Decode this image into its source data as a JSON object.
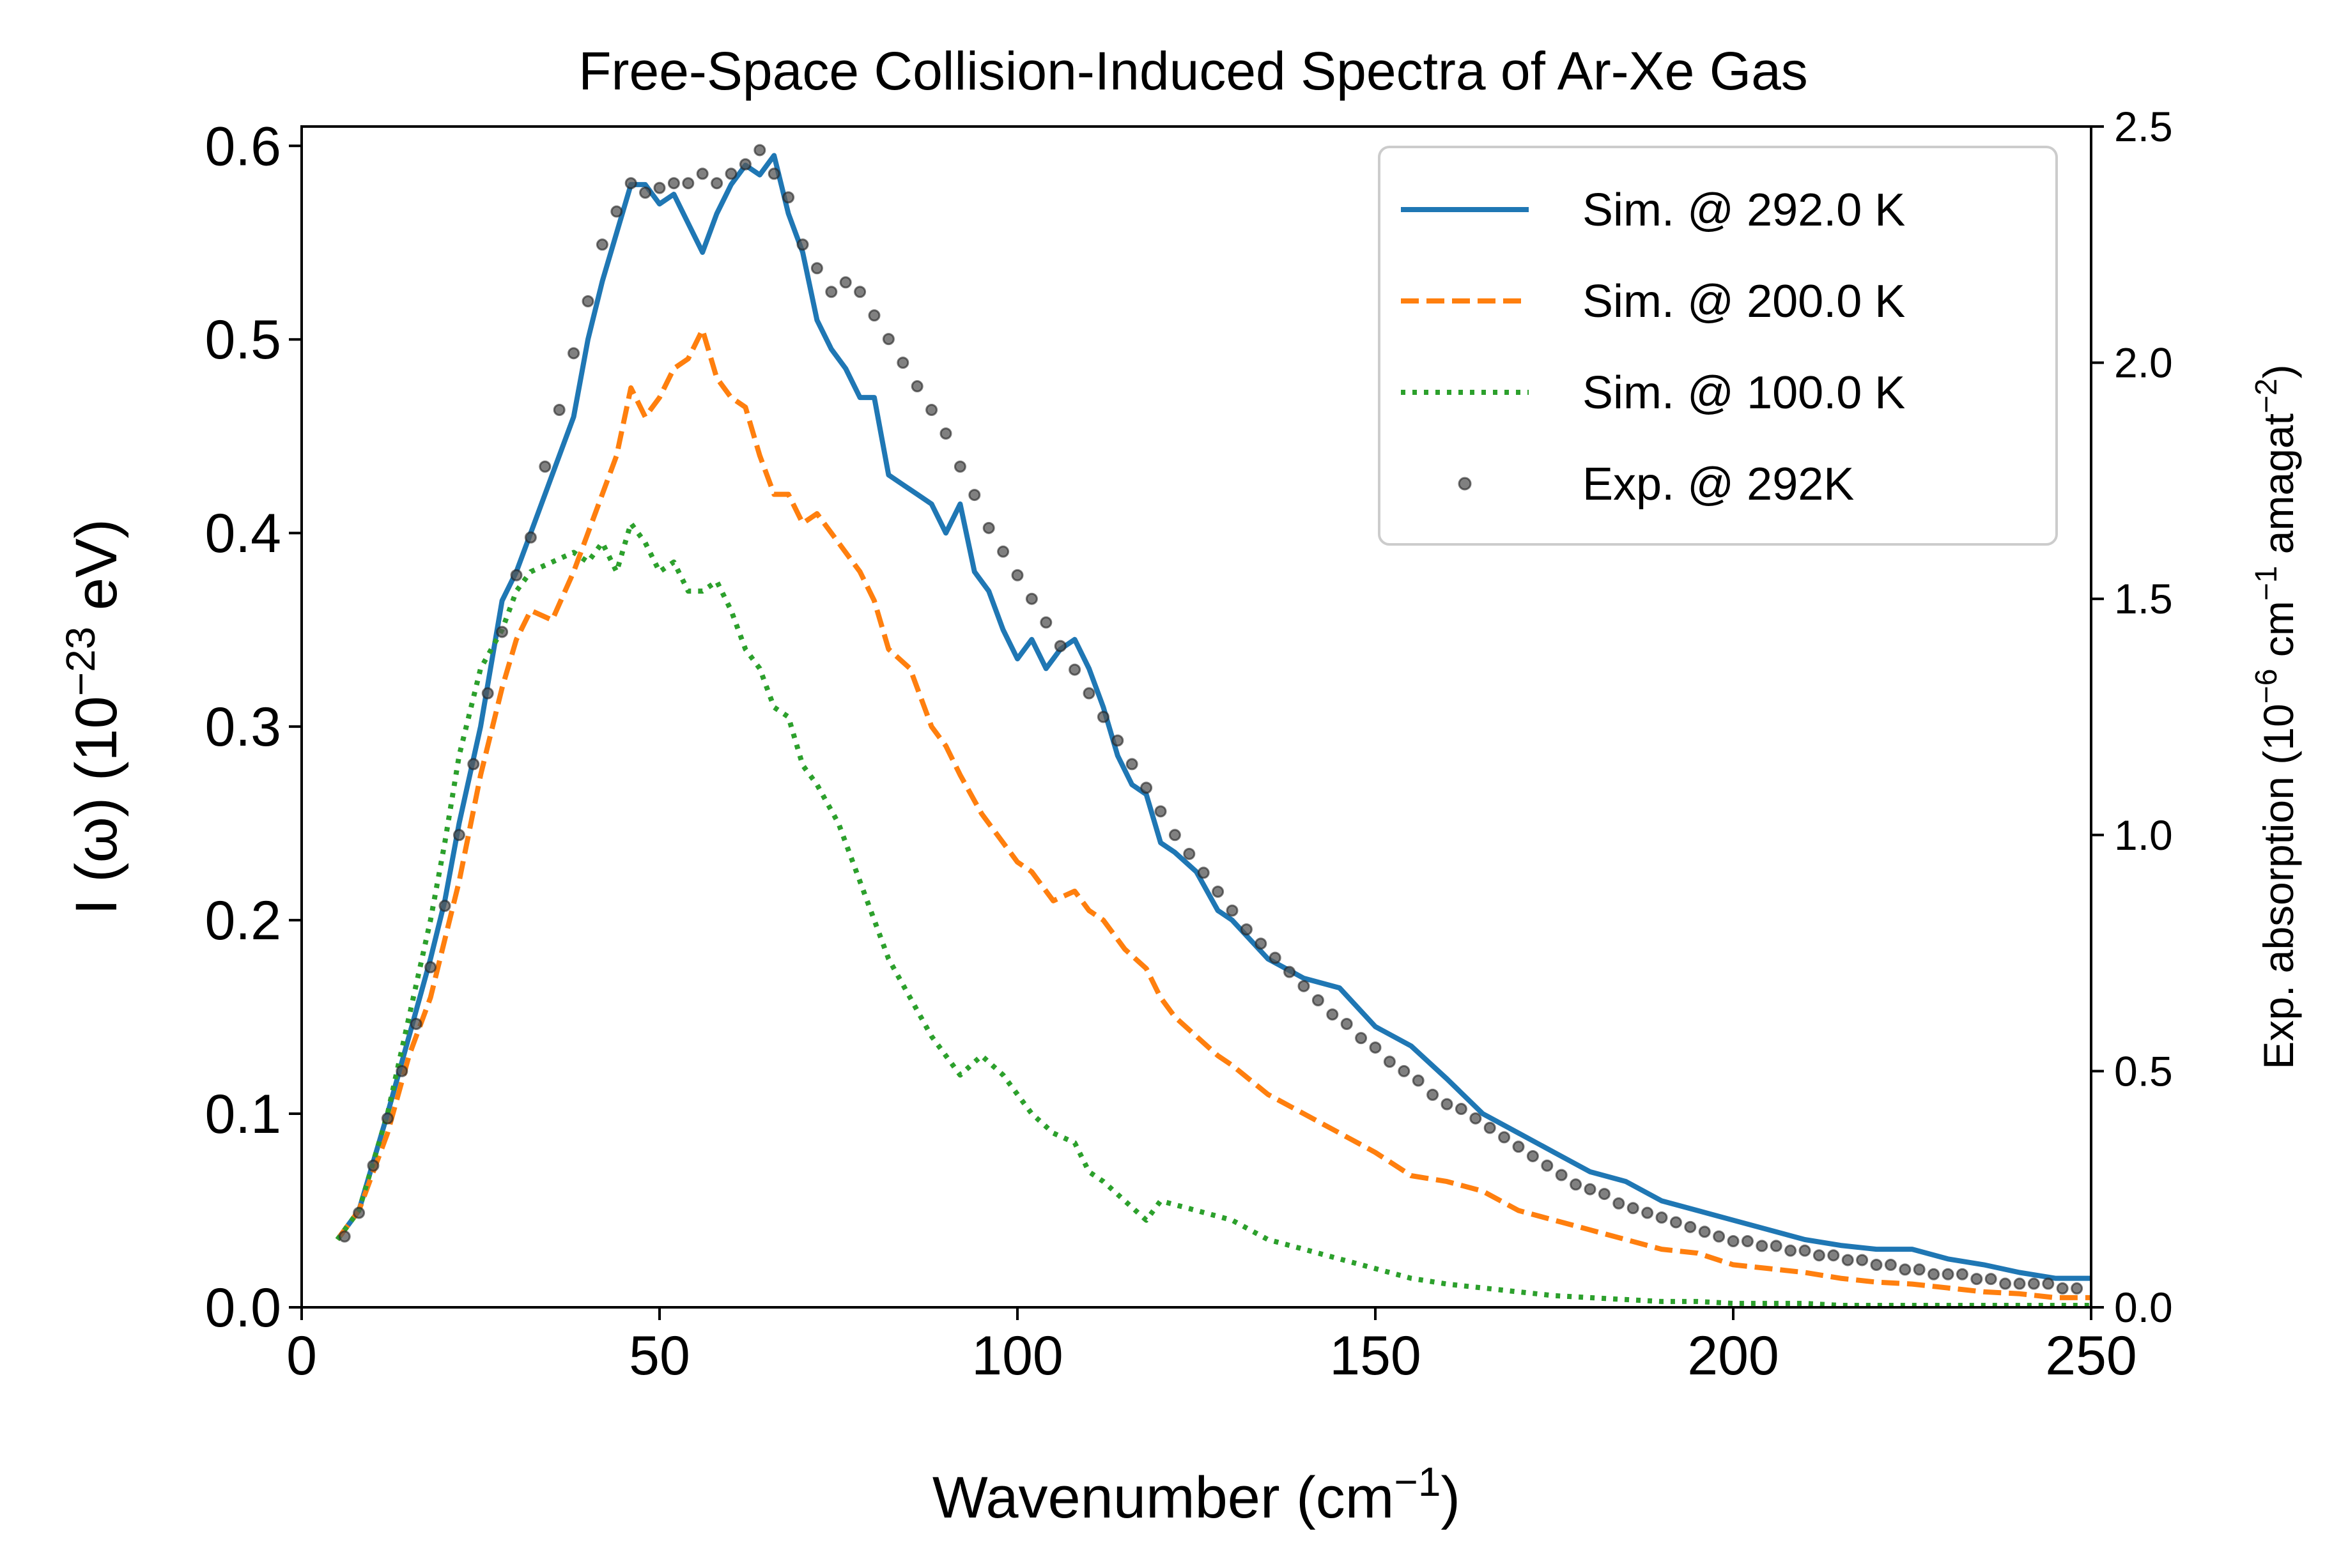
{
  "chart_data": {
    "type": "line",
    "title": "Free-Space Collision-Induced Spectra of Ar-Xe Gas",
    "xlabel": "Wavenumber (cm",
    "xlabel_sup": "−1",
    "xlabel_end": ")",
    "ylabel": "I (ω) (10",
    "ylabel_sup": "−23",
    "ylabel_end": " eV)",
    "y2label": "Exp. absorption (10",
    "y2label_sup1": "−6",
    "y2label_mid": " cm",
    "y2label_sup2": "−1",
    "y2label_mid2": " amagat",
    "y2label_sup3": "−2",
    "y2label_end": ")",
    "xlim": [
      0,
      250
    ],
    "ylim": [
      0,
      0.61
    ],
    "y2lim": [
      0,
      2.5
    ],
    "xticks": [
      "0",
      "50",
      "100",
      "150",
      "200",
      "250"
    ],
    "yticks": [
      "0.0",
      "0.1",
      "0.2",
      "0.3",
      "0.4",
      "0.5",
      "0.6"
    ],
    "y2ticks": [
      "0.0",
      "0.5",
      "1.0",
      "1.5",
      "2.0",
      "2.5"
    ],
    "grid": false,
    "legend_position": "top-right",
    "series": [
      {
        "name": "Sim. @ 292.0 K",
        "color": "#1f77b4",
        "style": "solid",
        "axis": "left",
        "x": [
          5,
          8,
          12,
          15,
          18,
          20,
          22,
          25,
          28,
          30,
          32,
          35,
          38,
          40,
          42,
          44,
          46,
          48,
          50,
          52,
          54,
          56,
          58,
          60,
          62,
          64,
          66,
          68,
          70,
          72,
          74,
          76,
          78,
          80,
          82,
          84,
          86,
          88,
          90,
          92,
          94,
          96,
          98,
          100,
          102,
          104,
          106,
          108,
          110,
          112,
          114,
          116,
          118,
          120,
          122,
          125,
          128,
          130,
          135,
          140,
          145,
          150,
          155,
          160,
          165,
          170,
          175,
          180,
          185,
          190,
          195,
          200,
          205,
          210,
          215,
          220,
          225,
          230,
          235,
          240,
          245,
          250
        ],
        "y": [
          0.035,
          0.05,
          0.1,
          0.14,
          0.18,
          0.21,
          0.25,
          0.3,
          0.365,
          0.38,
          0.4,
          0.43,
          0.46,
          0.5,
          0.53,
          0.555,
          0.58,
          0.58,
          0.57,
          0.575,
          0.56,
          0.545,
          0.565,
          0.58,
          0.59,
          0.585,
          0.595,
          0.565,
          0.545,
          0.51,
          0.495,
          0.485,
          0.47,
          0.47,
          0.43,
          0.425,
          0.42,
          0.415,
          0.4,
          0.415,
          0.38,
          0.37,
          0.35,
          0.335,
          0.345,
          0.33,
          0.34,
          0.345,
          0.33,
          0.31,
          0.285,
          0.27,
          0.265,
          0.24,
          0.235,
          0.225,
          0.205,
          0.2,
          0.18,
          0.17,
          0.165,
          0.145,
          0.135,
          0.118,
          0.1,
          0.09,
          0.08,
          0.07,
          0.065,
          0.055,
          0.05,
          0.045,
          0.04,
          0.035,
          0.032,
          0.03,
          0.03,
          0.025,
          0.022,
          0.018,
          0.015,
          0.015
        ]
      },
      {
        "name": "Sim. @ 200.0 K",
        "color": "#ff7f0e",
        "style": "dashed",
        "axis": "left",
        "x": [
          5,
          8,
          12,
          15,
          18,
          20,
          22,
          25,
          28,
          30,
          32,
          35,
          38,
          40,
          42,
          44,
          46,
          48,
          50,
          52,
          54,
          56,
          58,
          60,
          62,
          64,
          66,
          68,
          70,
          72,
          75,
          78,
          80,
          82,
          85,
          88,
          90,
          92,
          95,
          98,
          100,
          102,
          105,
          108,
          110,
          112,
          115,
          118,
          120,
          122,
          125,
          128,
          130,
          135,
          140,
          145,
          150,
          155,
          160,
          165,
          170,
          175,
          180,
          185,
          190,
          195,
          200,
          205,
          210,
          215,
          220,
          225,
          230,
          235,
          240,
          245,
          250
        ],
        "y": [
          0.035,
          0.05,
          0.09,
          0.13,
          0.16,
          0.19,
          0.22,
          0.275,
          0.32,
          0.345,
          0.36,
          0.355,
          0.38,
          0.4,
          0.42,
          0.44,
          0.475,
          0.46,
          0.47,
          0.485,
          0.49,
          0.505,
          0.48,
          0.47,
          0.465,
          0.44,
          0.42,
          0.42,
          0.405,
          0.41,
          0.395,
          0.38,
          0.365,
          0.34,
          0.33,
          0.3,
          0.29,
          0.275,
          0.255,
          0.24,
          0.23,
          0.225,
          0.21,
          0.215,
          0.205,
          0.2,
          0.185,
          0.175,
          0.16,
          0.15,
          0.14,
          0.13,
          0.125,
          0.11,
          0.1,
          0.09,
          0.08,
          0.068,
          0.065,
          0.06,
          0.05,
          0.045,
          0.04,
          0.035,
          0.03,
          0.028,
          0.022,
          0.02,
          0.018,
          0.015,
          0.013,
          0.012,
          0.01,
          0.008,
          0.007,
          0.005,
          0.005
        ]
      },
      {
        "name": "Sim. @ 100.0 K",
        "color": "#2ca02c",
        "style": "dotted",
        "axis": "left",
        "x": [
          5,
          8,
          12,
          15,
          18,
          20,
          22,
          25,
          28,
          30,
          32,
          35,
          38,
          40,
          42,
          44,
          46,
          48,
          50,
          52,
          54,
          56,
          58,
          60,
          62,
          64,
          66,
          68,
          70,
          72,
          75,
          78,
          80,
          82,
          85,
          88,
          90,
          92,
          95,
          98,
          100,
          102,
          105,
          108,
          110,
          112,
          115,
          118,
          120,
          125,
          130,
          135,
          140,
          145,
          150,
          155,
          160,
          165,
          170,
          175,
          180,
          185,
          190,
          195,
          200,
          205,
          210,
          215,
          220,
          225,
          230,
          235,
          240,
          245,
          250
        ],
        "y": [
          0.035,
          0.05,
          0.1,
          0.15,
          0.2,
          0.24,
          0.285,
          0.33,
          0.35,
          0.37,
          0.38,
          0.385,
          0.39,
          0.385,
          0.395,
          0.38,
          0.405,
          0.395,
          0.38,
          0.385,
          0.37,
          0.37,
          0.375,
          0.36,
          0.34,
          0.33,
          0.31,
          0.305,
          0.28,
          0.27,
          0.25,
          0.22,
          0.2,
          0.18,
          0.16,
          0.14,
          0.13,
          0.12,
          0.13,
          0.12,
          0.11,
          0.1,
          0.09,
          0.085,
          0.07,
          0.065,
          0.055,
          0.045,
          0.055,
          0.05,
          0.045,
          0.035,
          0.03,
          0.025,
          0.02,
          0.015,
          0.012,
          0.01,
          0.008,
          0.006,
          0.005,
          0.004,
          0.003,
          0.003,
          0.002,
          0.002,
          0.002,
          0.001,
          0.001,
          0.001,
          0.001,
          0.001,
          0.001,
          0.001,
          0.001
        ]
      },
      {
        "name": "Exp. @ 292K",
        "color": "#555555",
        "style": "markers",
        "axis": "right",
        "x": [
          6,
          8,
          10,
          12,
          14,
          16,
          18,
          20,
          22,
          24,
          26,
          28,
          30,
          32,
          34,
          36,
          38,
          40,
          42,
          44,
          46,
          48,
          50,
          52,
          54,
          56,
          58,
          60,
          62,
          64,
          66,
          68,
          70,
          72,
          74,
          76,
          78,
          80,
          82,
          84,
          86,
          88,
          90,
          92,
          94,
          96,
          98,
          100,
          102,
          104,
          106,
          108,
          110,
          112,
          114,
          116,
          118,
          120,
          122,
          124,
          126,
          128,
          130,
          132,
          134,
          136,
          138,
          140,
          142,
          144,
          146,
          148,
          150,
          152,
          154,
          156,
          158,
          160,
          162,
          164,
          166,
          168,
          170,
          172,
          174,
          176,
          178,
          180,
          182,
          184,
          186,
          188,
          190,
          192,
          194,
          196,
          198,
          200,
          202,
          204,
          206,
          208,
          210,
          212,
          214,
          216,
          218,
          220,
          222,
          224,
          226,
          228,
          230,
          232,
          234,
          236,
          238,
          240,
          242,
          244,
          246,
          248
        ],
        "y": [
          0.15,
          0.2,
          0.3,
          0.4,
          0.5,
          0.6,
          0.72,
          0.85,
          1.0,
          1.15,
          1.3,
          1.43,
          1.55,
          1.63,
          1.78,
          1.9,
          2.02,
          2.13,
          2.25,
          2.32,
          2.38,
          2.36,
          2.37,
          2.38,
          2.38,
          2.4,
          2.38,
          2.4,
          2.42,
          2.45,
          2.4,
          2.35,
          2.25,
          2.2,
          2.15,
          2.17,
          2.15,
          2.1,
          2.05,
          2.0,
          1.95,
          1.9,
          1.85,
          1.78,
          1.72,
          1.65,
          1.6,
          1.55,
          1.5,
          1.45,
          1.4,
          1.35,
          1.3,
          1.25,
          1.2,
          1.15,
          1.1,
          1.05,
          1.0,
          0.96,
          0.92,
          0.88,
          0.84,
          0.8,
          0.77,
          0.74,
          0.71,
          0.68,
          0.65,
          0.62,
          0.6,
          0.57,
          0.55,
          0.52,
          0.5,
          0.48,
          0.45,
          0.43,
          0.42,
          0.4,
          0.38,
          0.36,
          0.34,
          0.32,
          0.3,
          0.28,
          0.26,
          0.25,
          0.24,
          0.22,
          0.21,
          0.2,
          0.19,
          0.18,
          0.17,
          0.16,
          0.15,
          0.14,
          0.14,
          0.13,
          0.13,
          0.12,
          0.12,
          0.11,
          0.11,
          0.1,
          0.1,
          0.09,
          0.09,
          0.08,
          0.08,
          0.07,
          0.07,
          0.07,
          0.06,
          0.06,
          0.05,
          0.05,
          0.05,
          0.05,
          0.04,
          0.04
        ]
      }
    ]
  }
}
